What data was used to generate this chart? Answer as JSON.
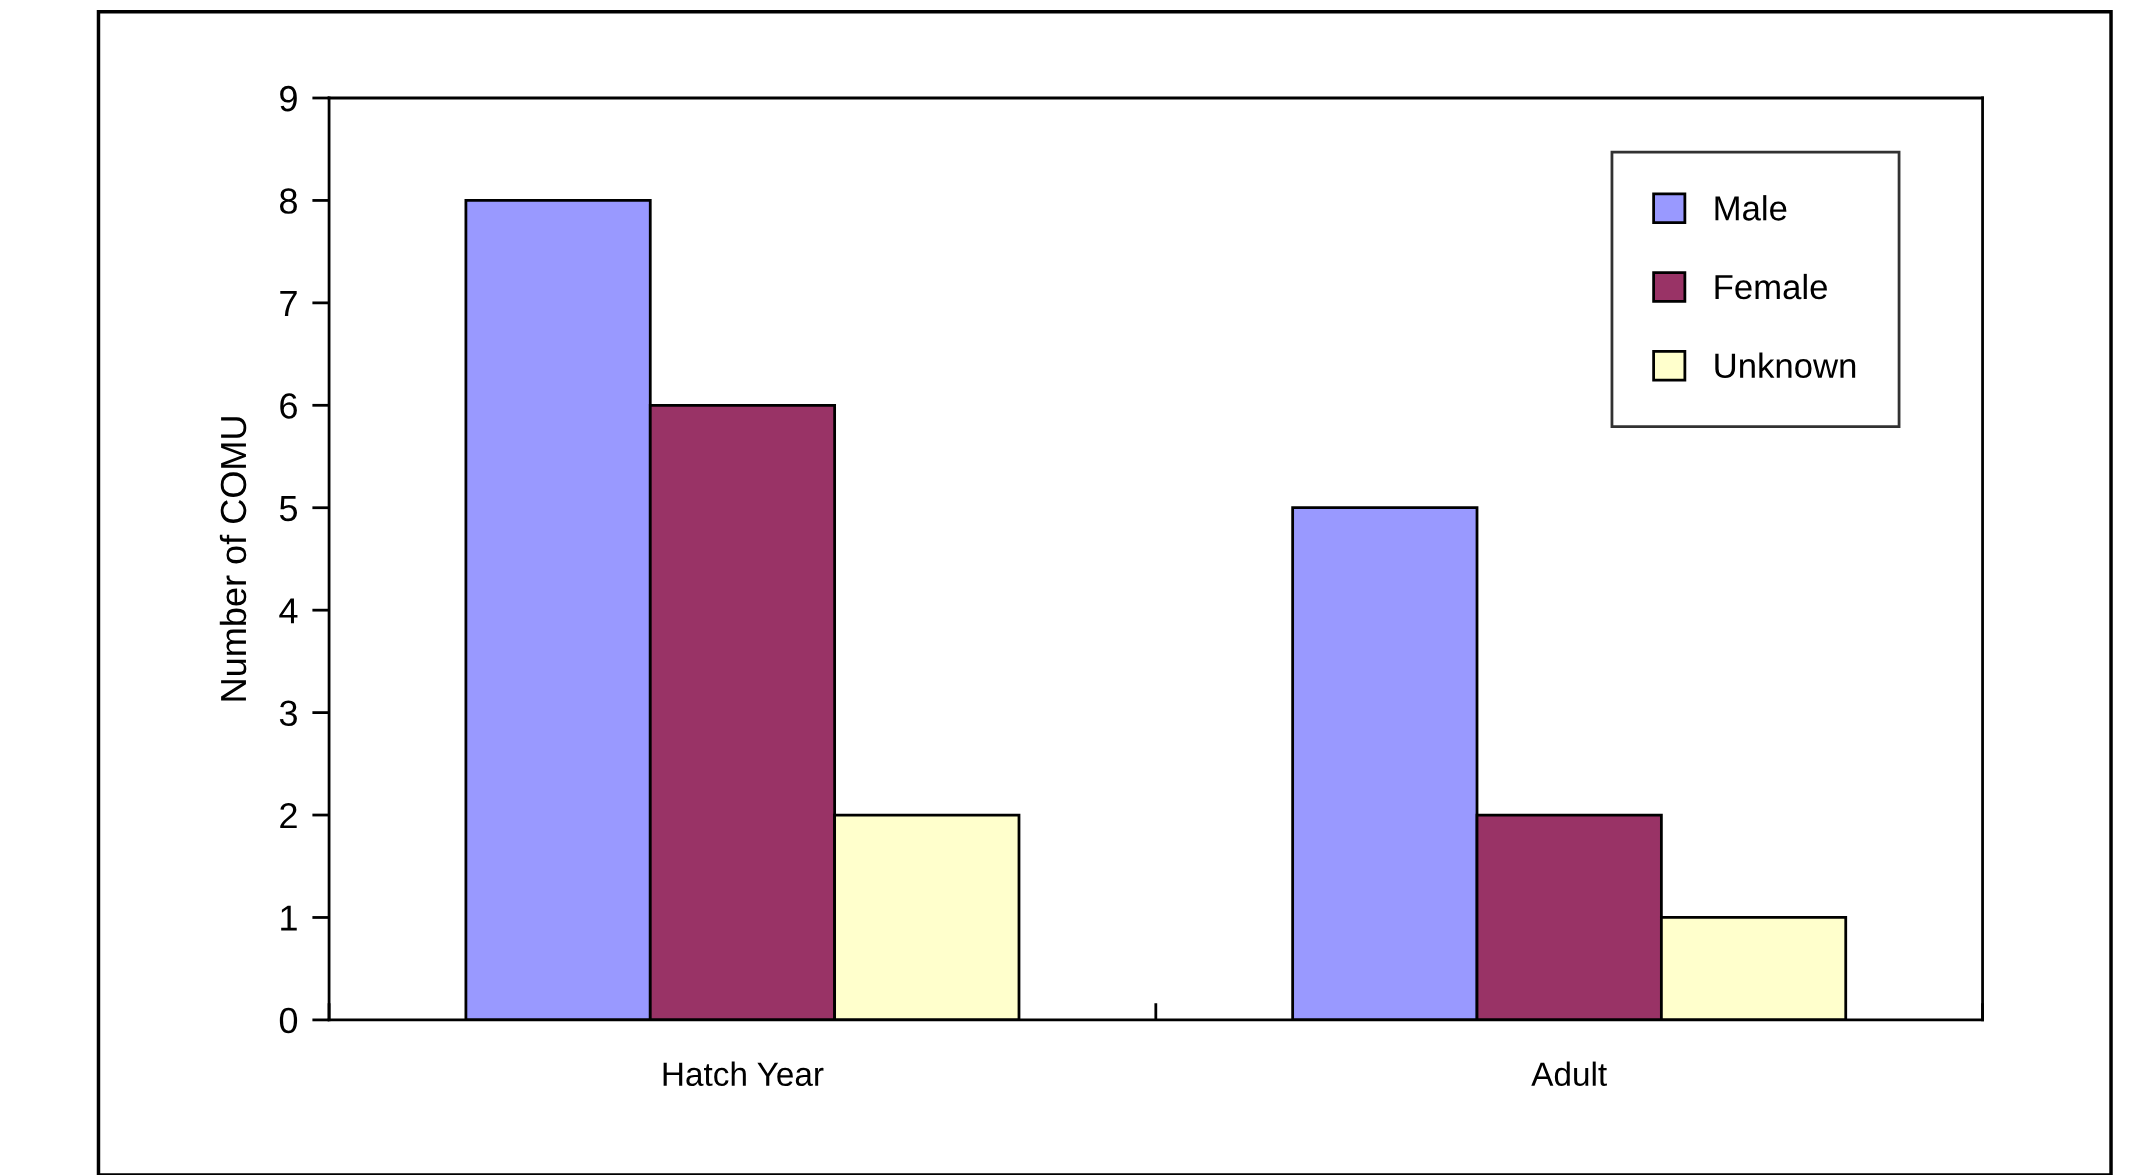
{
  "chart_data": {
    "type": "bar",
    "ylabel": "Number of COMU",
    "categories": [
      "Hatch Year",
      "Adult"
    ],
    "series": [
      {
        "name": "Male",
        "color": "#9999ff",
        "values": [
          8,
          5
        ]
      },
      {
        "name": "Female",
        "color": "#993366",
        "values": [
          6,
          2
        ]
      },
      {
        "name": "Unknown",
        "color": "#ffffcc",
        "values": [
          2,
          1
        ]
      }
    ],
    "ylim": [
      0,
      9
    ],
    "yticks": [
      0,
      1,
      2,
      3,
      4,
      5,
      6,
      7,
      8,
      9
    ],
    "grid": false,
    "legend": "top right"
  }
}
